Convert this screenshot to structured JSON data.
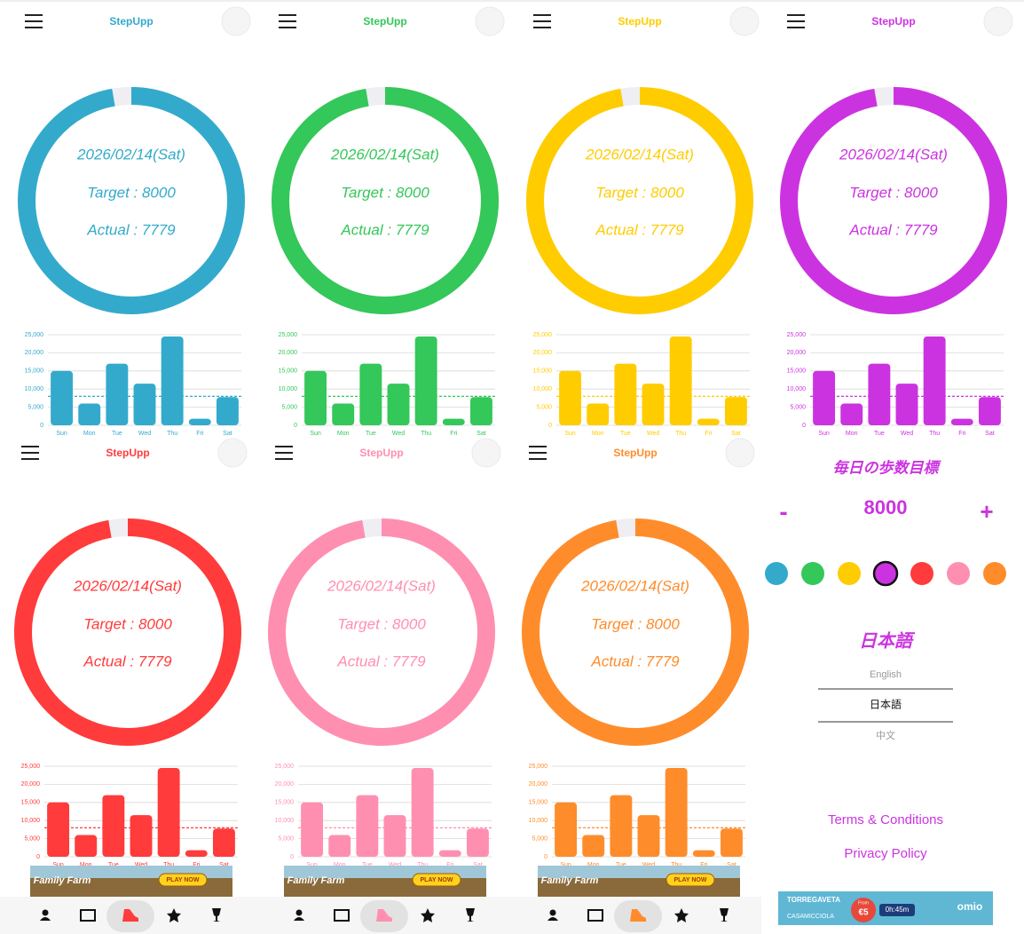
{
  "app": {
    "name": "StepUpp"
  },
  "panels": [
    {
      "color": "#33aacc"
    },
    {
      "color": "#34c759"
    },
    {
      "color": "#ffcc00"
    },
    {
      "color": "#cc33e0"
    },
    {
      "color": "#ff3b3b"
    },
    {
      "color": "#ff8fb0"
    },
    {
      "color": "#ff8c2a"
    }
  ],
  "summary": {
    "date": "2026/02/14(Sat)",
    "target_label": "Target : 8000",
    "actual_label": "Actual : 7779",
    "target": 8000,
    "actual": 7779
  },
  "chart_data": {
    "type": "bar",
    "categories": [
      "Sun",
      "Mon",
      "Tue",
      "Wed",
      "Thu",
      "Fri",
      "Sat"
    ],
    "values": [
      15000,
      6000,
      17000,
      11500,
      24500,
      1800,
      7779
    ],
    "ylim": [
      0,
      25000
    ],
    "yticks": [
      0,
      {
        "value": 5000,
        "label": "5,000"
      },
      {
        "value": 10000,
        "label": "10,000"
      },
      {
        "value": 15000,
        "label": "15,000"
      },
      {
        "value": 20000,
        "label": "20,000"
      },
      {
        "value": 25000,
        "label": "25,000"
      }
    ],
    "target_line": 8000,
    "grid": true
  },
  "settings": {
    "goal_title": "毎日の歩数目標",
    "minus": "-",
    "goal": 8000,
    "plus": "+",
    "selected_color": 3,
    "language_title": "日本語",
    "languages": [
      "English",
      "日本語",
      "中文"
    ],
    "selected_language": 1,
    "links": [
      "Terms & Conditions",
      "Privacy Policy"
    ]
  },
  "ads": {
    "game": {
      "title": "Family Farm",
      "button": "PLAY NOW"
    },
    "travel": {
      "from": "TORREGAVETA",
      "to": "CASAMICCIOLA",
      "price_prefix": "From",
      "price": "€5",
      "duration": "0h:45m",
      "brand": "omio"
    }
  }
}
